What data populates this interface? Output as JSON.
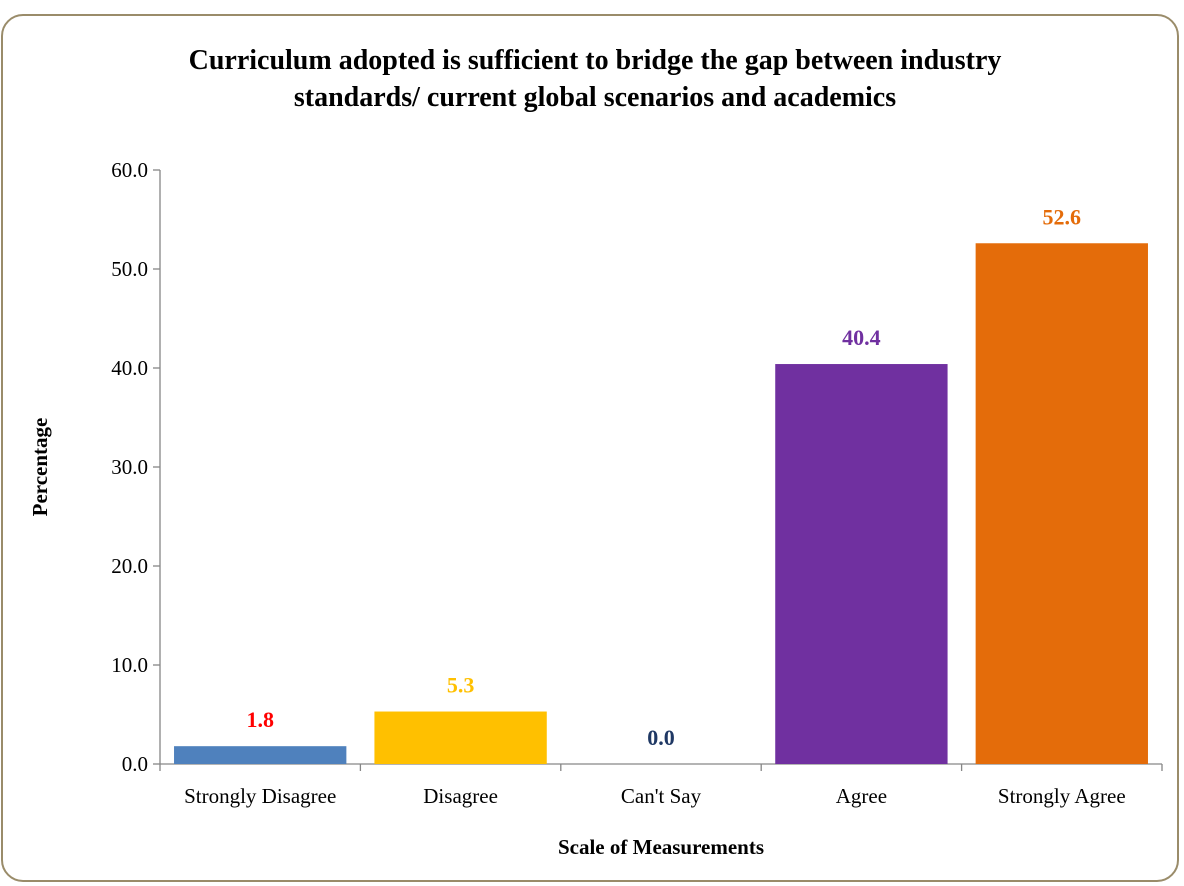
{
  "chart_data": {
    "type": "bar",
    "title": "Curriculum adopted is sufficient to bridge the gap between industry standards/ current global scenarios and academics",
    "title_lines": [
      "Curriculum adopted is sufficient to bridge the gap between industry",
      "standards/ current global scenarios and academics"
    ],
    "xlabel": "Scale of Measurements",
    "ylabel": "Percentage",
    "categories": [
      "Strongly Disagree",
      "Disagree",
      "Can't Say",
      "Agree",
      "Strongly Agree"
    ],
    "values": [
      1.8,
      5.3,
      0.0,
      40.4,
      52.6
    ],
    "value_labels": [
      "1.8",
      "5.3",
      "0.0",
      "40.4",
      "52.6"
    ],
    "bar_colors": [
      "#4f81bd",
      "#ffc000",
      "#1f3864",
      "#7030a0",
      "#e46c0a"
    ],
    "label_colors": [
      "#ff0000",
      "#ffc000",
      "#1f3864",
      "#7030a0",
      "#e46c0a"
    ],
    "ylim": [
      0,
      60
    ],
    "yticks": [
      0,
      10,
      20,
      30,
      40,
      50,
      60
    ],
    "ytick_labels": [
      "0.0",
      "10.0",
      "20.0",
      "30.0",
      "40.0",
      "50.0",
      "60.0"
    ],
    "grid": false,
    "legend": "none"
  }
}
